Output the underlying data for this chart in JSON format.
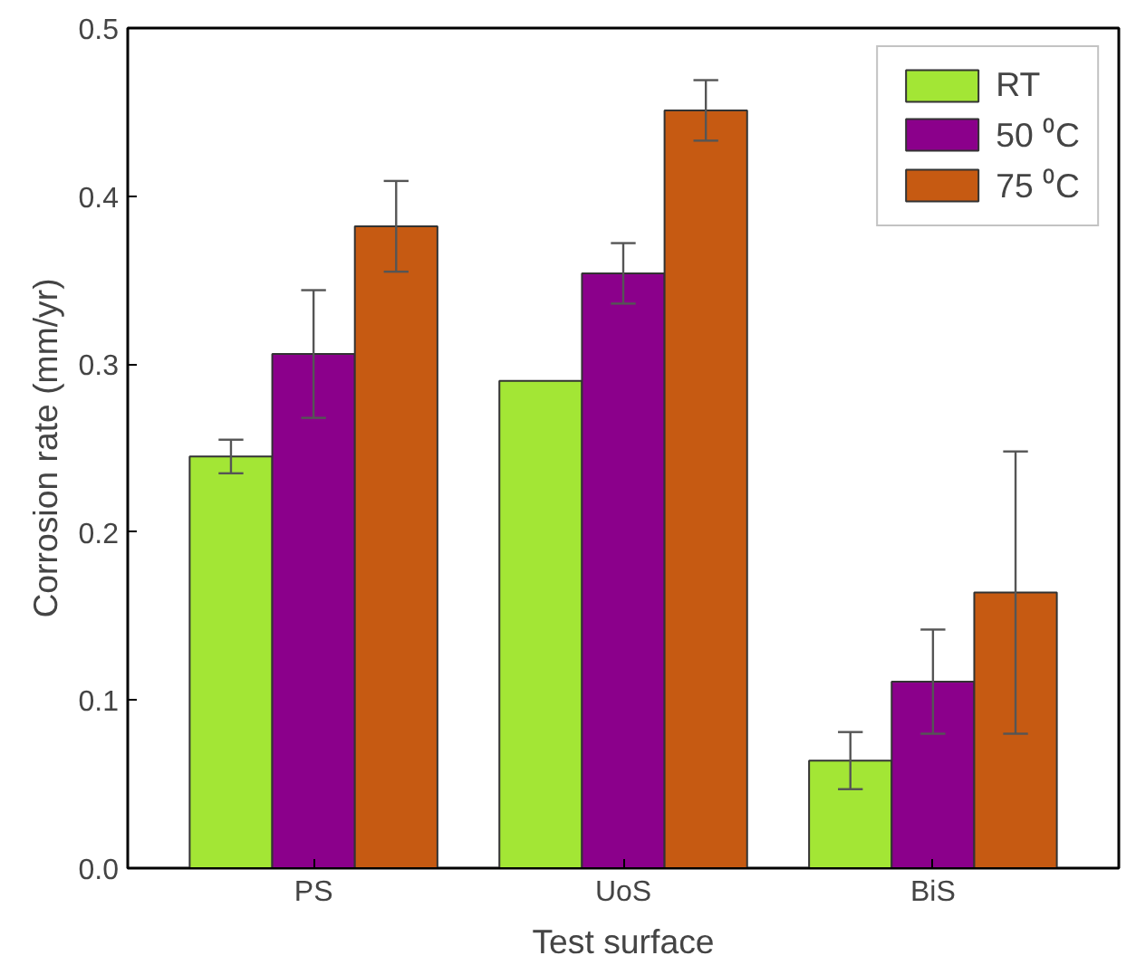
{
  "chart_data": {
    "type": "bar",
    "xlabel": "Test surface",
    "ylabel": "Corrosion rate (mm/yr)",
    "categories": [
      "PS",
      "UoS",
      "BiS"
    ],
    "series": [
      {
        "name": "RT",
        "color": "#a3e635",
        "values": [
          0.245,
          0.29,
          0.064
        ],
        "errors": [
          0.01,
          null,
          0.017
        ]
      },
      {
        "name": "50 ⁰C",
        "color": "#8b008b",
        "values": [
          0.306,
          0.354,
          0.111
        ],
        "errors": [
          0.038,
          0.018,
          0.031
        ]
      },
      {
        "name": "75 ⁰C",
        "color": "#c65a12",
        "values": [
          0.382,
          0.451,
          0.164
        ],
        "errors": [
          0.027,
          0.018,
          0.084
        ]
      }
    ],
    "ylim": [
      0,
      0.5
    ],
    "yticks": [
      {
        "value": 0,
        "label": "0.0"
      },
      {
        "value": 0.1,
        "label": "0.1"
      },
      {
        "value": 0.2,
        "label": "0.2"
      },
      {
        "value": 0.3,
        "label": "0.3"
      },
      {
        "value": 0.4,
        "label": "0.4"
      },
      {
        "value": 0.5,
        "label": "0.5"
      }
    ],
    "grid": false,
    "legend": "top right"
  }
}
